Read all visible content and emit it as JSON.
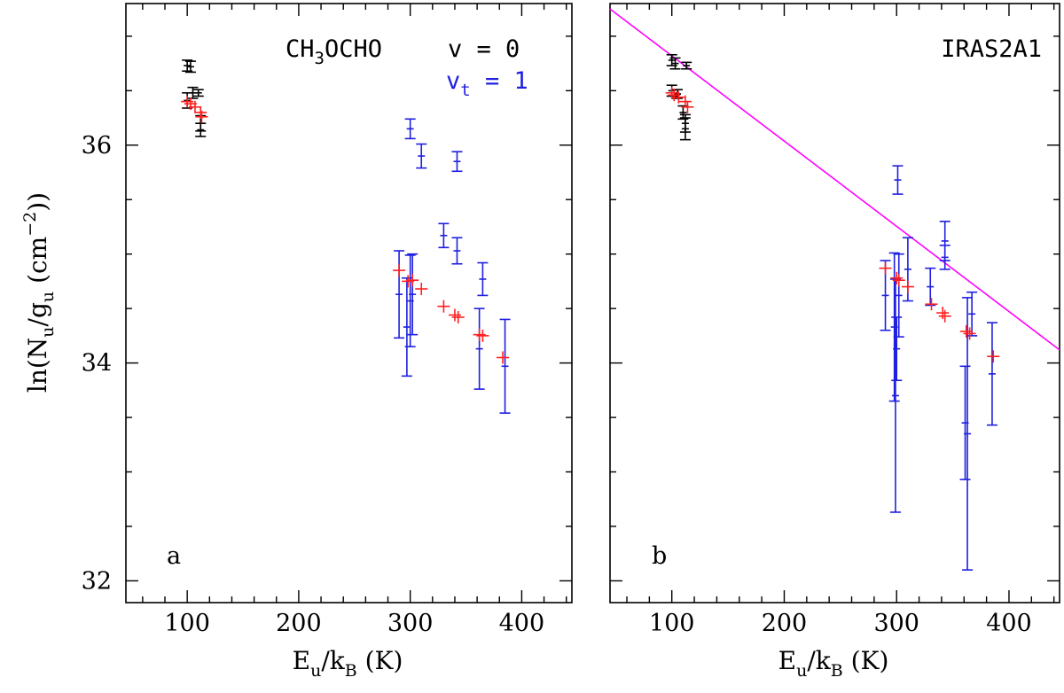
{
  "colors": {
    "v0": "#000000",
    "vt1": "#1f1fe0",
    "model": "#ff2020",
    "fit": "#ff00ff"
  },
  "chart_data": [
    {
      "type": "scatter",
      "panel_label": "a",
      "legend": {
        "molecule": "CH3OCHO",
        "v0_label": "v = 0",
        "vt1_label": "vt = 1"
      },
      "xlabel": "Eu/kB (K)",
      "ylabel": "ln(Nu/gu (cm−2))",
      "xlim": [
        45,
        445
      ],
      "ylim": [
        31.8,
        37.3
      ],
      "xticks": [
        100,
        200,
        300,
        400
      ],
      "yticks": [
        32,
        34,
        36
      ],
      "series": [
        {
          "name": "v = 0",
          "color_key": "v0",
          "points": [
            [
              100,
              36.73,
              0.05
            ],
            [
              103,
              36.72,
              0.05
            ],
            [
              100,
              36.41,
              0.07
            ],
            [
              105,
              36.48,
              0.05
            ],
            [
              110,
              36.48,
              0.03
            ],
            [
              112,
              36.2,
              0.07
            ],
            [
              112,
              36.14,
              0.06
            ]
          ]
        },
        {
          "name": "vt = 1",
          "color_key": "vt1",
          "points": [
            [
              300,
              36.15,
              0.09
            ],
            [
              310,
              35.9,
              0.11
            ],
            [
              342,
              35.85,
              0.09
            ],
            [
              330,
              35.17,
              0.11
            ],
            [
              342,
              35.03,
              0.12
            ],
            [
              365,
              34.77,
              0.15
            ],
            [
              290,
              34.63,
              0.4
            ],
            [
              297,
              34.33,
              0.45
            ],
            [
              300,
              34.57,
              0.42
            ],
            [
              302,
              34.63,
              0.37
            ],
            [
              362,
              34.13,
              0.37
            ],
            [
              385,
              33.97,
              0.43
            ]
          ]
        },
        {
          "name": "model",
          "color_key": "model",
          "points": [
            [
              100,
              36.4
            ],
            [
              103,
              36.38
            ],
            [
              107,
              36.35
            ],
            [
              112,
              36.3
            ],
            [
              113,
              36.26
            ],
            [
              290,
              34.85
            ],
            [
              298,
              34.75
            ],
            [
              302,
              34.76
            ],
            [
              310,
              34.68
            ],
            [
              330,
              34.52
            ],
            [
              340,
              34.44
            ],
            [
              343,
              34.42
            ],
            [
              362,
              34.26
            ],
            [
              365,
              34.25
            ],
            [
              383,
              34.05
            ]
          ]
        }
      ]
    },
    {
      "type": "scatter",
      "panel_label": "b",
      "source_label": "IRAS2A1",
      "xlabel": "Eu/kB (K)",
      "xlim": [
        45,
        445
      ],
      "ylim": [
        31.8,
        37.3
      ],
      "xticks": [
        100,
        200,
        300,
        400
      ],
      "yticks": [
        32,
        34,
        36
      ],
      "fit_line": {
        "x": [
          45,
          445
        ],
        "y": [
          37.25,
          34.12
        ]
      },
      "series": [
        {
          "name": "v = 0",
          "color_key": "v0",
          "points": [
            [
              100,
              36.78,
              0.05
            ],
            [
              103,
              36.75,
              0.05
            ],
            [
              100,
              36.5,
              0.05
            ],
            [
              105,
              36.47,
              0.04
            ],
            [
              110,
              36.3,
              0.06
            ],
            [
              113,
              36.73,
              0.03
            ],
            [
              112,
              36.2,
              0.08
            ],
            [
              112,
              36.15,
              0.1
            ]
          ]
        },
        {
          "name": "vt = 1",
          "color_key": "vt1",
          "points": [
            [
              301,
              35.68,
              0.13
            ],
            [
              343,
              35.12,
              0.18
            ],
            [
              343,
              34.97,
              0.11
            ],
            [
              330,
              34.7,
              0.17
            ],
            [
              310,
              34.86,
              0.29
            ],
            [
              290,
              34.62,
              0.32
            ],
            [
              298,
              34.33,
              0.68
            ],
            [
              299,
              33.7,
              1.07
            ],
            [
              302,
              34.62,
              0.38
            ],
            [
              300,
              34.13,
              0.29
            ],
            [
              367,
              34.45,
              0.2
            ],
            [
              361,
              33.45,
              0.52
            ],
            [
              363,
              33.35,
              1.25
            ],
            [
              385,
              33.9,
              0.47
            ]
          ]
        },
        {
          "name": "model",
          "color_key": "model",
          "points": [
            [
              100,
              36.48
            ],
            [
              102,
              36.46
            ],
            [
              106,
              36.44
            ],
            [
              112,
              36.4
            ],
            [
              114,
              36.35
            ],
            [
              290,
              34.87
            ],
            [
              300,
              34.78
            ],
            [
              302,
              34.76
            ],
            [
              310,
              34.7
            ],
            [
              331,
              34.54
            ],
            [
              341,
              34.46
            ],
            [
              343,
              34.43
            ],
            [
              362,
              34.29
            ],
            [
              365,
              34.27
            ],
            [
              386,
              34.06
            ]
          ]
        }
      ]
    }
  ]
}
